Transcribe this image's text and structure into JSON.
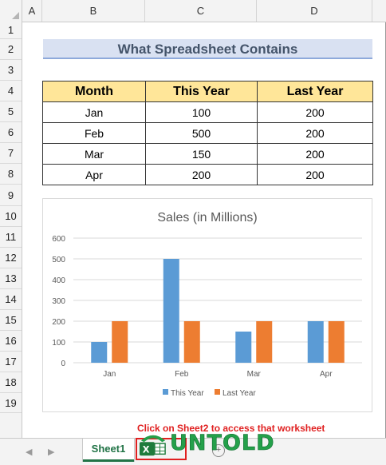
{
  "columns": [
    "A",
    "B",
    "C",
    "D"
  ],
  "rows": [
    "1",
    "2",
    "3",
    "4",
    "5",
    "6",
    "7",
    "8",
    "9",
    "10",
    "11",
    "12",
    "13",
    "14",
    "15",
    "16",
    "17",
    "18",
    "19"
  ],
  "title": "What Spreadsheet Contains",
  "table": {
    "headers": [
      "Month",
      "This Year",
      "Last Year"
    ],
    "rows": [
      [
        "Jan",
        "100",
        "200"
      ],
      [
        "Feb",
        "500",
        "200"
      ],
      [
        "Mar",
        "150",
        "200"
      ],
      [
        "Apr",
        "200",
        "200"
      ]
    ]
  },
  "chart_data": {
    "type": "bar",
    "title": "Sales (in Millions)",
    "categories": [
      "Jan",
      "Feb",
      "Mar",
      "Apr"
    ],
    "series": [
      {
        "name": "This Year",
        "values": [
          100,
          500,
          150,
          200
        ],
        "color": "#5b9bd5"
      },
      {
        "name": "Last Year",
        "values": [
          200,
          200,
          200,
          200
        ],
        "color": "#ed7d31"
      }
    ],
    "yticks": [
      0,
      100,
      200,
      300,
      400,
      500,
      600
    ],
    "ylim": [
      0,
      600
    ],
    "grid": true,
    "legend": "bottom"
  },
  "sheet_tabs": [
    "Sheet1"
  ],
  "instruction": "Click on Sheet2 to access that worksheet",
  "logo_text": "UNTOLD",
  "add_sheet_label": "+",
  "colors": {
    "accent": "#217346",
    "header_fill": "#ffe699",
    "title_fill": "#d9e1f2",
    "annotation": "#e02020"
  }
}
